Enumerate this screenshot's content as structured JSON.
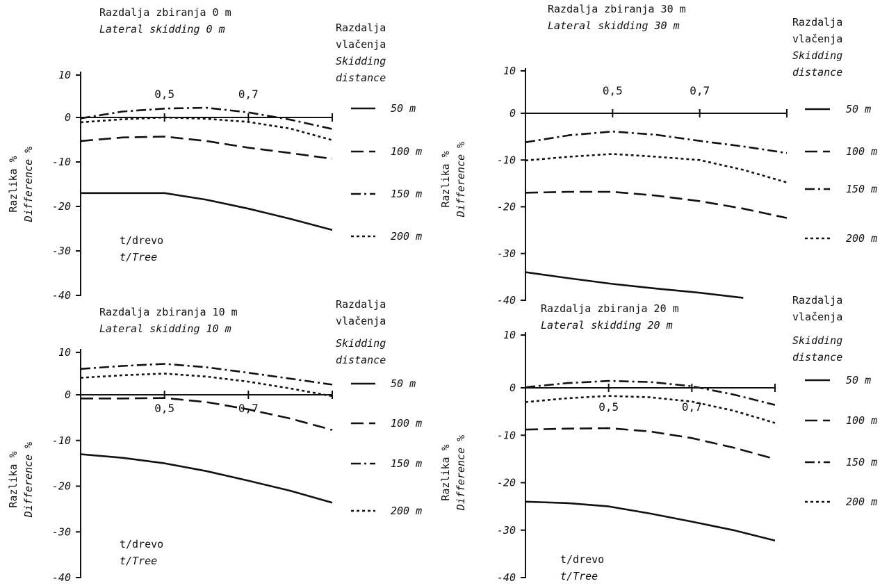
{
  "chart_data": [
    {
      "type": "line",
      "title": "Razdalja zbiranja 0 m",
      "subtitle": "Lateral skidding 0 m",
      "ylabel": "Razlika %",
      "ylabel_en": "Difference %",
      "xlabel": "t/drevo",
      "xlabel_en": "t/Tree",
      "legend_title": [
        "Razdalja",
        "vlačenja",
        "Skidding",
        "distance"
      ],
      "y_ticks": [
        "10",
        "0",
        "-10",
        "-20",
        "-30",
        "-40"
      ],
      "x_tick_labels": [
        "0,5",
        "0,7"
      ],
      "ylim": [
        -40,
        10
      ],
      "xlim": [
        0.3,
        0.9
      ],
      "x": [
        0.3,
        0.4,
        0.5,
        0.6,
        0.7,
        0.8,
        0.9
      ],
      "series": [
        {
          "name": "50 m",
          "style": "solid",
          "values": [
            -17,
            -17,
            -17,
            -18.5,
            -20.5,
            -22.8,
            -25.3
          ]
        },
        {
          "name": "100 m",
          "style": "dashed",
          "values": [
            -5.3,
            -4.5,
            -4.3,
            -5.3,
            -6.8,
            -8,
            -9.3
          ]
        },
        {
          "name": "150 m",
          "style": "dashdot",
          "values": [
            -0.2,
            1.4,
            2.1,
            2.3,
            1.2,
            -0.5,
            -2.6
          ]
        },
        {
          "name": "200 m",
          "style": "dotted",
          "values": [
            -1.1,
            -0.4,
            0,
            -0.3,
            -1,
            -2.5,
            -5.1
          ]
        }
      ]
    },
    {
      "type": "line",
      "title": "Razdalja zbiranja 30 m",
      "subtitle": "Lateral skidding 30 m",
      "ylabel": "Razlika %",
      "ylabel_en": "Difference %",
      "xlabel": "",
      "xlabel_en": "",
      "legend_title": [
        "Razdalja",
        "vlačenja",
        "Skidding",
        "distance"
      ],
      "y_ticks": [
        "10",
        "0",
        "-10",
        "-20",
        "-30",
        "-40"
      ],
      "x_tick_labels": [
        "0,5",
        "0,7"
      ],
      "ylim": [
        -40,
        10
      ],
      "xlim": [
        0.3,
        0.9
      ],
      "x": [
        0.3,
        0.4,
        0.5,
        0.6,
        0.7,
        0.8,
        0.9
      ],
      "series": [
        {
          "name": "50 m",
          "style": "solid",
          "values": [
            -34,
            -35.3,
            -36.5,
            -37.5,
            -38.4,
            -39.5,
            null
          ]
        },
        {
          "name": "100 m",
          "style": "dashed",
          "values": [
            -17,
            -16.8,
            -16.8,
            -17.6,
            -18.8,
            -20.4,
            -22.4
          ]
        },
        {
          "name": "150 m",
          "style": "dashdot",
          "values": [
            -6.2,
            -4.7,
            -3.9,
            -4.6,
            -5.9,
            -7.1,
            -8.5
          ]
        },
        {
          "name": "200 m",
          "style": "dotted",
          "values": [
            -10.1,
            -9.3,
            -8.7,
            -9.3,
            -10,
            -12.1,
            -14.8
          ]
        }
      ]
    },
    {
      "type": "line",
      "title": "Razdalja zbiranja 10 m",
      "subtitle": "Lateral skidding 10 m",
      "ylabel": "Razlika %",
      "ylabel_en": "Difference %",
      "xlabel": "t/drevo",
      "xlabel_en": "t/Tree",
      "legend_title": [
        "Razdalja",
        "vlačenja",
        "Skidding",
        "distance"
      ],
      "y_ticks": [
        "10",
        "0",
        "-10",
        "-20",
        "-30",
        "-40"
      ],
      "x_tick_labels": [
        "0,5",
        "0,7"
      ],
      "ylim": [
        -40,
        10
      ],
      "xlim": [
        0.3,
        0.9
      ],
      "x": [
        0.3,
        0.4,
        0.5,
        0.6,
        0.7,
        0.8,
        0.9
      ],
      "series": [
        {
          "name": "50 m",
          "style": "solid",
          "values": [
            -13,
            -13.8,
            -15,
            -16.7,
            -18.8,
            -21,
            -23.6
          ]
        },
        {
          "name": "100 m",
          "style": "dashed",
          "values": [
            -0.8,
            -0.8,
            -0.7,
            -1.6,
            -3.2,
            -5.2,
            -7.7
          ]
        },
        {
          "name": "150 m",
          "style": "dashdot",
          "values": [
            6.1,
            6.8,
            7.3,
            6.5,
            5.2,
            3.8,
            2.4
          ]
        },
        {
          "name": "200 m",
          "style": "dotted",
          "values": [
            4,
            4.6,
            5,
            4.3,
            3.1,
            1.5,
            -0.3
          ]
        }
      ]
    },
    {
      "type": "line",
      "title": "Razdalja zbiranja 20 m",
      "subtitle": "Lateral skidding 20 m",
      "ylabel": "Razlika %",
      "ylabel_en": "Difference %",
      "xlabel": "t/drevo",
      "xlabel_en": "t/Tree",
      "legend_title": [
        "Razdalja",
        "vlačenja",
        "Skidding",
        "distance"
      ],
      "y_ticks": [
        "10",
        "0",
        "-10",
        "-20",
        "-30",
        "-40"
      ],
      "x_tick_labels": [
        "0,5",
        "0,7"
      ],
      "ylim": [
        -40,
        10
      ],
      "xlim": [
        0.3,
        0.9
      ],
      "x": [
        0.3,
        0.4,
        0.5,
        0.6,
        0.7,
        0.8,
        0.9
      ],
      "series": [
        {
          "name": "50 m",
          "style": "solid",
          "values": [
            -24,
            -24.3,
            -25,
            -26.5,
            -28.2,
            -30,
            -32.2
          ]
        },
        {
          "name": "100 m",
          "style": "dashed",
          "values": [
            -8.8,
            -8.6,
            -8.5,
            -9.2,
            -10.6,
            -12.6,
            -15
          ]
        },
        {
          "name": "150 m",
          "style": "dashdot",
          "values": [
            0.1,
            0.9,
            1.3,
            1.1,
            0.3,
            -1.4,
            -3.6
          ]
        },
        {
          "name": "200 m",
          "style": "dotted",
          "values": [
            -3,
            -2.2,
            -1.7,
            -2,
            -2.9,
            -4.8,
            -7.4
          ]
        }
      ]
    }
  ]
}
